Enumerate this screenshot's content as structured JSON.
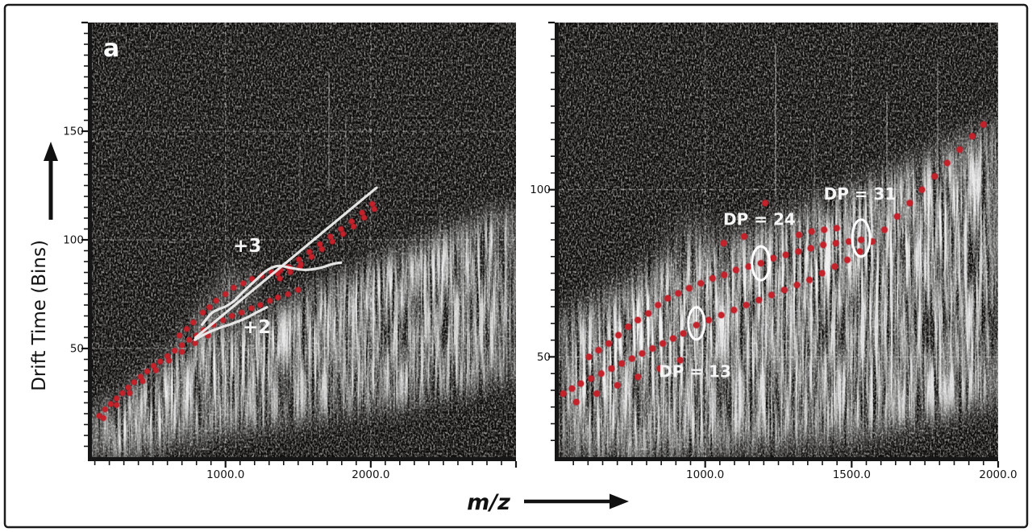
{
  "figure": {
    "panel_label": "a",
    "x_axis_label": "m/z",
    "y_axis_label": "Drift Time (Bins)"
  },
  "colors": {
    "dot": "#c4232b",
    "annotation": "#f5f5f5",
    "axis": "#161616",
    "grid": "#e8e8e8",
    "panel_background": "#0c0b09",
    "figure_background": "#ffffff",
    "border": "#1b1b1b"
  },
  "chart_data": [
    {
      "type": "heatmap",
      "panel": "left",
      "xlabel": "m/z",
      "ylabel": "Drift Time (Bins)",
      "x": {
        "range": [
          80,
          3000
        ],
        "minor_step": 100,
        "major_every": 1000,
        "gridlines": [
          1000,
          2000
        ],
        "tick_labels": [
          {
            "value": 1000,
            "label": "1000.0"
          },
          {
            "value": 2000,
            "label": "2000.0"
          }
        ]
      },
      "y": {
        "range": [
          0,
          200
        ],
        "minor_step": 5,
        "major_every": 50,
        "gridlines": [
          50,
          100,
          150
        ],
        "tick_labels": [
          {
            "value": 50,
            "label": "50"
          },
          {
            "value": 100,
            "label": "100"
          },
          {
            "value": 150,
            "label": "150"
          }
        ]
      },
      "series": [
        {
          "name": "charge-2-chain",
          "points": [
            [
              130,
              19
            ],
            [
              170,
              22
            ],
            [
              210,
              24.5
            ],
            [
              250,
              27
            ],
            [
              290,
              29.5
            ],
            [
              330,
              32
            ],
            [
              370,
              34.5
            ],
            [
              415,
              37
            ],
            [
              460,
              39.5
            ],
            [
              505,
              42
            ],
            [
              550,
              44
            ],
            [
              600,
              46.5
            ],
            [
              650,
              49
            ],
            [
              700,
              51.5
            ],
            [
              750,
              54
            ],
            [
              800,
              56
            ],
            [
              850,
              58.5
            ],
            [
              917,
              61
            ],
            [
              983,
              63
            ],
            [
              1044,
              65
            ],
            [
              1111,
              66.5
            ],
            [
              1178,
              68.5
            ],
            [
              1239,
              70
            ],
            [
              1306,
              72
            ],
            [
              1360,
              73.5
            ],
            [
              1430,
              75
            ],
            [
              1500,
              77
            ]
          ]
        },
        {
          "name": "charge-3-chain",
          "points": [
            [
              683,
              56
            ],
            [
              733,
              59
            ],
            [
              778,
              62
            ],
            [
              844,
              66.5
            ],
            [
              889,
              69
            ],
            [
              935,
              72
            ],
            [
              1000,
              75
            ],
            [
              1056,
              78
            ],
            [
              1122,
              80
            ],
            [
              1183,
              82
            ],
            [
              1250,
              83.5
            ],
            [
              1317,
              85
            ],
            [
              1378,
              86
            ],
            [
              1444,
              87
            ],
            [
              1511,
              87.5
            ]
          ]
        },
        {
          "name": "high-mass-chain",
          "points": [
            [
              1360,
              84.5
            ],
            [
              1374,
              82.2
            ],
            [
              1432,
              87.5
            ],
            [
              1446,
              85.2
            ],
            [
              1505,
              91
            ],
            [
              1519,
              88.7
            ],
            [
              1578,
              94.5
            ],
            [
              1592,
              92.2
            ],
            [
              1650,
              98
            ],
            [
              1664,
              95.7
            ],
            [
              1722,
              101.5
            ],
            [
              1736,
              99.2
            ],
            [
              1795,
              105
            ],
            [
              1809,
              102.7
            ],
            [
              1868,
              108.5
            ],
            [
              1882,
              106.2
            ],
            [
              1940,
              112.5
            ],
            [
              1954,
              110.2
            ],
            [
              2010,
              116.5
            ],
            [
              2024,
              114.2
            ]
          ]
        },
        {
          "name": "scatter-extras",
          "points": [
            [
              160,
              18
            ],
            [
              250,
              24
            ],
            [
              340,
              29.5
            ],
            [
              430,
              35
            ],
            [
              520,
              40
            ],
            [
              610,
              44.5
            ],
            [
              700,
              48.5
            ],
            [
              790,
              52.5
            ],
            [
              880,
              56
            ]
          ]
        }
      ],
      "lines": [
        {
          "name": "linear-fit-line",
          "straight": true,
          "points": [
            [
              794,
              55
            ],
            [
              2040,
              124
            ]
          ]
        },
        {
          "name": "plus3-smoothed-trace",
          "points": [
            [
              839,
              61
            ],
            [
              900,
              66
            ],
            [
              950,
              68
            ],
            [
              1005,
              69.5
            ],
            [
              1060,
              72
            ],
            [
              1120,
              76
            ],
            [
              1200,
              81
            ],
            [
              1285,
              86
            ],
            [
              1365,
              88
            ],
            [
              1455,
              87
            ],
            [
              1545,
              86.2
            ],
            [
              1645,
              87
            ],
            [
              1745,
              89
            ],
            [
              1795,
              89.5
            ]
          ]
        },
        {
          "name": "plus2-smoothed-trace",
          "points": [
            [
              789,
              54
            ],
            [
              870,
              57
            ],
            [
              960,
              59.5
            ],
            [
              1050,
              61.5
            ],
            [
              1140,
              64
            ],
            [
              1225,
              67
            ],
            [
              1285,
              69
            ]
          ]
        }
      ],
      "ellipses": [],
      "annotations": [
        {
          "text": "+3",
          "mz": 1150,
          "dt": 94.5,
          "size": 23
        },
        {
          "text": "+2",
          "mz": 1215,
          "dt": 57,
          "size": 23
        }
      ]
    },
    {
      "type": "heatmap",
      "panel": "right",
      "xlabel": "m/z",
      "ylabel": "Drift Time (Bins)",
      "x": {
        "range": [
          500,
          2000
        ],
        "minor_step": 50,
        "major_every": 500,
        "gridlines": [
          1000,
          1500,
          2000
        ],
        "tick_labels": [
          {
            "value": 1000,
            "label": "1000.0"
          },
          {
            "value": 1500,
            "label": "1500.0"
          },
          {
            "value": 2000,
            "label": "2000.0"
          }
        ]
      },
      "y": {
        "range": [
          20,
          150
        ],
        "minor_step": 5,
        "major_every": 50,
        "gridlines": [
          50,
          100
        ],
        "tick_labels": [
          {
            "value": 50,
            "label": "50"
          },
          {
            "value": 100,
            "label": "100"
          }
        ]
      },
      "series": [
        {
          "name": "lower-oligomer-chain",
          "points": [
            [
              515,
              39
            ],
            [
              545,
              40.5
            ],
            [
              575,
              42
            ],
            [
              610,
              43.5
            ],
            [
              645,
              45
            ],
            [
              680,
              46.5
            ],
            [
              715,
              48
            ],
            [
              750,
              49.5
            ],
            [
              785,
              51
            ],
            [
              820,
              52.5
            ],
            [
              855,
              54
            ],
            [
              890,
              55.5
            ],
            [
              925,
              57
            ],
            [
              970,
              59.5
            ],
            [
              1012,
              61
            ],
            [
              1055,
              62.5
            ],
            [
              1098,
              64
            ],
            [
              1140,
              65.5
            ],
            [
              1183,
              67
            ],
            [
              1226,
              68.5
            ],
            [
              1270,
              70
            ],
            [
              1313,
              71.5
            ],
            [
              1356,
              73
            ],
            [
              1399,
              75
            ],
            [
              1442,
              77
            ],
            [
              1485,
              79
            ],
            [
              1528,
              81.5
            ],
            [
              1570,
              84.5
            ],
            [
              1612,
              88
            ],
            [
              1655,
              92
            ],
            [
              1698,
              96
            ],
            [
              1740,
              100
            ],
            [
              1783,
              104
            ],
            [
              1826,
              108
            ],
            [
              1869,
              112
            ],
            [
              1912,
              116
            ],
            [
              1950,
              119.5
            ]
          ]
        },
        {
          "name": "upper-oligomer-chain",
          "points": [
            [
              603,
              50
            ],
            [
              636,
              52
            ],
            [
              671,
              54
            ],
            [
              704,
              56.5
            ],
            [
              737,
              59
            ],
            [
              770,
              61
            ],
            [
              806,
              63
            ],
            [
              839,
              65.5
            ],
            [
              872,
              67.5
            ],
            [
              908,
              69
            ],
            [
              945,
              70.5
            ],
            [
              985,
              72
            ],
            [
              1025,
              73.5
            ],
            [
              1065,
              74.5
            ],
            [
              1105,
              76
            ],
            [
              1148,
              77
            ],
            [
              1190,
              78
            ],
            [
              1232,
              79.5
            ],
            [
              1275,
              80.5
            ],
            [
              1318,
              81.5
            ],
            [
              1360,
              82.5
            ],
            [
              1403,
              83.5
            ],
            [
              1446,
              84
            ],
            [
              1490,
              84.5
            ],
            [
              1532,
              85
            ]
          ]
        },
        {
          "name": "scatter-extras",
          "points": [
            [
              1063,
              84
            ],
            [
              1133,
              86
            ],
            [
              1320,
              86.5
            ],
            [
              1363,
              87.5
            ],
            [
              1406,
              88
            ],
            [
              1449,
              88.5
            ],
            [
              1205,
              96
            ],
            [
              560,
              36.5
            ],
            [
              630,
              39
            ],
            [
              700,
              41.5
            ],
            [
              770,
              44
            ],
            [
              845,
              46.5
            ],
            [
              915,
              49
            ]
          ]
        }
      ],
      "lines": [],
      "ellipses": [
        {
          "mz": 970,
          "dt": 60,
          "rx": 10,
          "ry": 20
        },
        {
          "mz": 1190,
          "dt": 78,
          "rx": 11,
          "ry": 21
        },
        {
          "mz": 1532,
          "dt": 85.5,
          "rx": 11,
          "ry": 23
        }
      ],
      "annotations": [
        {
          "text": "DP = 13",
          "mz": 965,
          "dt": 44,
          "size": 20
        },
        {
          "text": "DP = 24",
          "mz": 1185,
          "dt": 89.5,
          "size": 20
        },
        {
          "text": "DP = 31",
          "mz": 1528,
          "dt": 97,
          "size": 20
        }
      ]
    }
  ]
}
